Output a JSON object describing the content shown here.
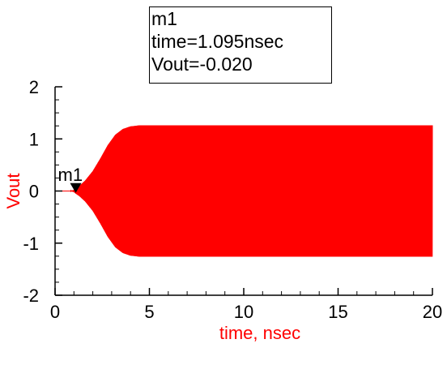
{
  "chart_data": {
    "type": "line",
    "title": "",
    "xlabel": "time, nsec",
    "ylabel": "Vout",
    "xlim": [
      0,
      20
    ],
    "ylim": [
      -2,
      2
    ],
    "x_ticks": [
      "0",
      "5",
      "10",
      "15",
      "20"
    ],
    "y_ticks": [
      "2",
      "1",
      "0",
      "-1",
      "-2"
    ],
    "grid": false,
    "series": [
      {
        "name": "Vout",
        "color": "#ff0000",
        "envelope": {
          "time_nsec": [
            0,
            0.8,
            1.0,
            1.1,
            1.3,
            1.6,
            2.0,
            2.4,
            2.8,
            3.2,
            3.6,
            4.0,
            4.5,
            5.0,
            20
          ],
          "amplitude": [
            0,
            0,
            0.02,
            0.05,
            0.1,
            0.2,
            0.38,
            0.62,
            0.88,
            1.08,
            1.19,
            1.24,
            1.26,
            1.26,
            1.26
          ]
        }
      }
    ],
    "markers": [
      {
        "name": "m1",
        "time": "1.095nsec",
        "value": "-0.020",
        "x": 1.095,
        "y": -0.02
      }
    ]
  },
  "marker_readout": {
    "name": "m1",
    "time_line": "time=1.095nsec",
    "value_line": "Vout=-0.020"
  },
  "colors": {
    "trace": "#ff0000",
    "axis": "#000000",
    "xlabel": "#ff0000",
    "ylabel": "#ff0000"
  }
}
